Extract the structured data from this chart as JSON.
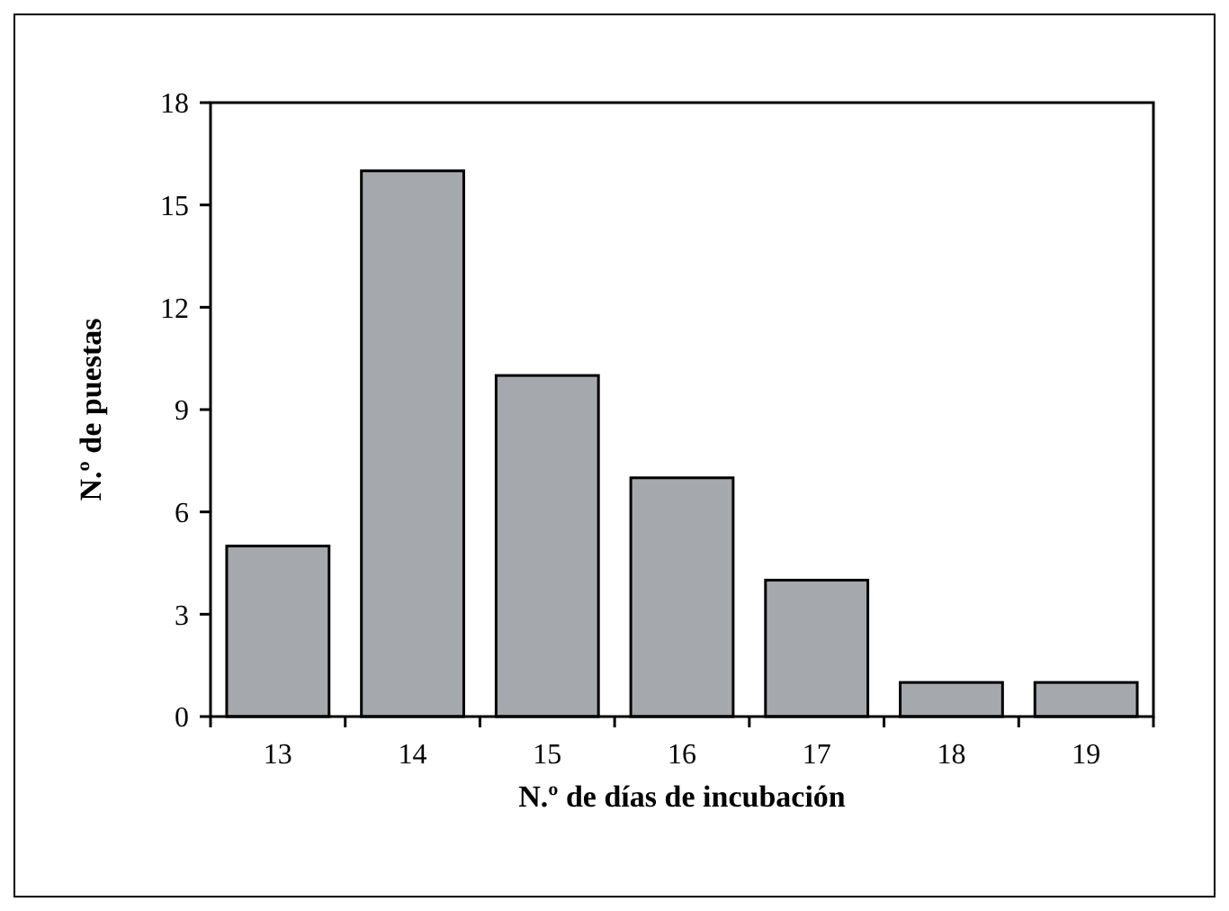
{
  "chart_data": {
    "type": "bar",
    "xlabel": "N.º de días de incubación",
    "ylabel": "N.º de puestas",
    "categories": [
      "13",
      "14",
      "15",
      "16",
      "17",
      "18",
      "19"
    ],
    "values": [
      5,
      16,
      10,
      7,
      4,
      1,
      1
    ],
    "color": "#a5a8ad",
    "ylim": [
      0,
      18
    ],
    "yticks": [
      0,
      3,
      6,
      9,
      12,
      15,
      18
    ],
    "grid": false
  }
}
